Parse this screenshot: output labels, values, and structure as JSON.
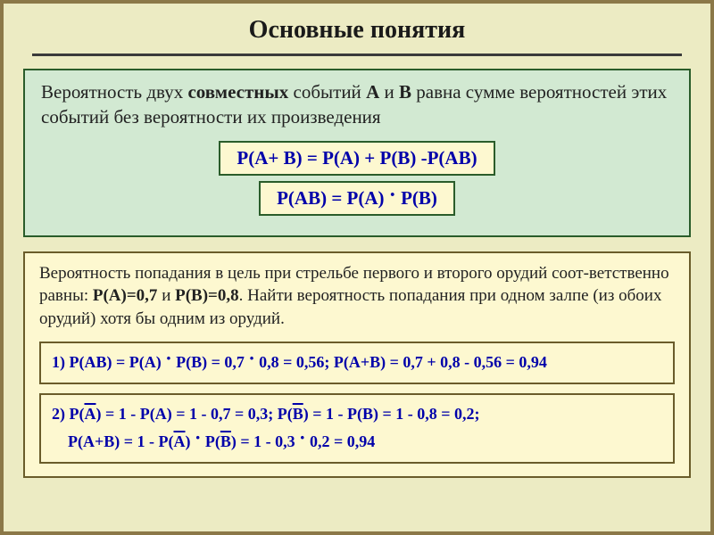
{
  "title": "Основные понятия",
  "theorem": {
    "text_parts": {
      "p1": "Вероятность двух ",
      "p2": "совместных",
      "p3": " событий ",
      "p4": "А",
      "p5": " и ",
      "p6": "В",
      "p7": " равна сумме вероятностей этих событий без вероятности их произведения"
    },
    "formula1": "P(A+ B) = P(A) + P(B) -P(AB)",
    "formula2_parts": {
      "a": "P(AB) = P(A) ",
      "b": " P(B)"
    }
  },
  "example": {
    "text_parts": {
      "p1": "Вероятность попадания в цель при стрельбе первого и второго орудий соот-ветственно равны: ",
      "p2": "Р(А)=0,7",
      "p3": " и ",
      "p4": "Р(В)=0,8",
      "p5": ". Найти вероятность попадания при одном залпе (из обоих орудий) хотя бы одним из орудий."
    },
    "solution1": {
      "a": "1) P(AB)  =  P(A) ",
      "b": " P(B) =  0,7 ",
      "c": " 0,8 = 0,56;   P(A+B) = 0,7 + 0,8 - 0,56 = 0,94"
    },
    "solution2": {
      "l1a": "2) P(",
      "l1b": "A",
      "l1c": ") = 1 - P(A) = 1 - 0,7 = 0,3;   P(",
      "l1d": "B",
      "l1e": ") = 1 - P(B) = 1 - 0,8 = 0,2;",
      "l2a": "    P(A+B) = 1 - P(",
      "l2b": "A",
      "l2c": ") ",
      "l2d": " P(",
      "l2e": "B",
      "l2f": ") = 1 - 0,3 ",
      "l2g": " 0,2 = 0,94"
    }
  },
  "colors": {
    "page_bg": "#ecebc3",
    "page_border": "#8b7848",
    "theorem_bg": "#d2e9d2",
    "theorem_border": "#2a5c2a",
    "formula_bg": "#fdf8d0",
    "formula_text": "#0000aa",
    "example_bg": "#fdf8d0",
    "example_border": "#6a5c2a",
    "title_underline": "#3a3a3a"
  }
}
